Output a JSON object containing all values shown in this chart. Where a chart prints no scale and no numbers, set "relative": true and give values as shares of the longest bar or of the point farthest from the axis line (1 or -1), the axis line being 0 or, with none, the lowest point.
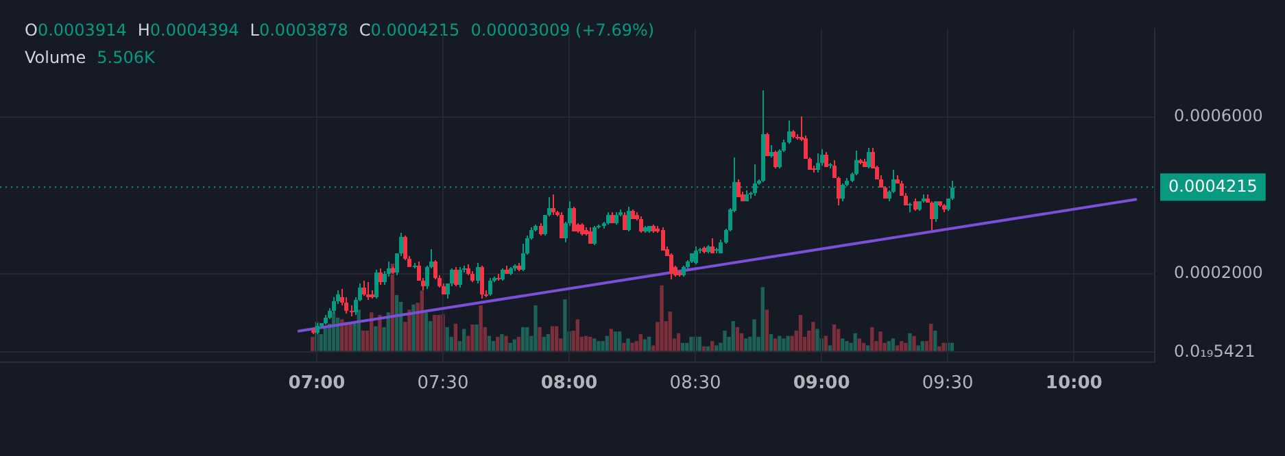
{
  "chart_data": [
    {
      "type": "candlestick",
      "annotations": [
        "O",
        "0.0003914",
        "H",
        "0.0004394",
        "L",
        "0.0003878",
        "C",
        "0.0004215",
        "0.00003009 (+7.69%)"
      ],
      "x": [
        6.9833,
        7,
        7.0167,
        7.0333,
        7.05,
        7.0667,
        7.0833,
        7.1,
        7.1167,
        7.1333,
        7.15,
        7.1667,
        7.1833,
        7.2,
        7.2167,
        7.2333,
        7.25,
        7.2667,
        7.2833,
        7.3,
        7.3167,
        7.3333,
        7.35,
        7.3667,
        7.3833,
        7.4,
        7.4167,
        7.4333,
        7.45,
        7.4667,
        7.4833,
        7.5,
        7.5167,
        7.5333,
        7.55,
        7.5667,
        7.5833,
        7.6,
        7.6167,
        7.6333,
        7.65,
        7.6667,
        7.6833,
        7.7,
        7.7167,
        7.7333,
        7.75,
        7.7667,
        7.7833,
        7.8,
        7.8167,
        7.8333,
        7.85,
        7.8667,
        7.8833,
        7.9,
        7.9167,
        7.9333,
        7.95,
        7.9667,
        7.9833,
        8,
        8.0167,
        8.0333,
        8.05,
        8.0667,
        8.0833,
        8.1,
        8.1167,
        8.1333,
        8.15,
        8.1667,
        8.1833,
        8.2,
        8.2167,
        8.2333,
        8.25,
        8.2667,
        8.2833,
        8.3,
        8.3167,
        8.3333,
        8.35,
        8.3667,
        8.3833,
        8.4,
        8.4167,
        8.4333,
        8.45,
        8.4667,
        8.4833,
        8.5,
        8.5167,
        8.5333,
        8.55,
        8.5667,
        8.5833,
        8.6,
        8.6167,
        8.6333,
        8.65,
        8.6667,
        8.6833,
        8.7,
        8.7167,
        8.7333,
        8.75,
        8.7667,
        8.7833,
        8.8,
        8.8167,
        8.8333,
        8.85,
        8.8667,
        8.8833,
        8.9,
        8.9167,
        8.9333,
        8.95,
        8.9667,
        8.9833,
        9,
        9.0167,
        9.0333,
        9.05,
        9.0667,
        9.0833,
        9.1,
        9.1167,
        9.1333,
        9.15,
        9.1667,
        9.1833,
        9.2,
        9.2167,
        9.2333,
        9.25,
        9.2667,
        9.2833,
        9.3,
        9.3167,
        9.3333,
        9.35,
        9.3667,
        9.3833,
        9.4,
        9.4167,
        9.4333,
        9.45,
        9.4667,
        9.4833,
        9.5,
        9.5167
      ],
      "ohlc": [
        [
          5.7e-05,
          6.4e-05,
          4.8e-05,
          5.1e-05
        ],
        [
          5.1e-05,
          7.3e-05,
          4.8e-05,
          6.7e-05
        ],
        [
          6.7e-05,
          7.6e-05,
          6e-05,
          7.3e-05
        ],
        [
          7.3e-05,
          9.5e-05,
          7e-05,
          8.9e-05
        ],
        [
          8.9e-05,
          0.000114,
          8.3e-05,
          0.000105
        ],
        [
          0.000105,
          0.00014,
          9.8e-05,
          0.00013
        ],
        [
          0.00013,
          0.000159,
          0.000124,
          0.000146
        ],
        [
          0.00014,
          0.000162,
          0.000121,
          0.000127
        ],
        [
          0.000127,
          0.00014,
          9.8e-05,
          0.000105
        ],
        [
          0.000105,
          0.000121,
          9.2e-05,
          0.000102
        ],
        [
          0.000102,
          0.00014,
          9.5e-05,
          0.000133
        ],
        [
          0.000133,
          0.000175,
          0.00013,
          0.000165
        ],
        [
          0.000165,
          0.000181,
          0.000143,
          0.000149
        ],
        [
          0.000149,
          0.000178,
          0.000133,
          0.00014
        ],
        [
          0.000149,
          0.000159,
          0.000137,
          0.00014
        ],
        [
          0.00014,
          0.00021,
          0.000137,
          0.000203
        ],
        [
          0.000203,
          0.000213,
          0.000171,
          0.000178
        ],
        [
          0.000178,
          0.000206,
          0.000171,
          0.0002
        ],
        [
          0.0002,
          0.000232,
          0.000194,
          0.000213
        ],
        [
          0.000213,
          0.000219,
          0.0002,
          0.000203
        ],
        [
          0.000203,
          0.000254,
          0.000197,
          0.000251
        ],
        [
          0.000251,
          0.000305,
          0.000244,
          0.000295
        ],
        [
          0.000295,
          0.000298,
          0.000235,
          0.000238
        ],
        [
          0.000238,
          0.000244,
          0.000216,
          0.000219
        ],
        [
          0.000219,
          0.000229,
          0.000213,
          0.000222
        ],
        [
          0.000222,
          0.000232,
          0.000181,
          0.000184
        ],
        [
          0.000184,
          0.000191,
          0.000159,
          0.000168
        ],
        [
          0.000168,
          0.000222,
          0.000162,
          0.000216
        ],
        [
          0.000216,
          0.000264,
          0.000213,
          0.000232
        ],
        [
          0.000232,
          0.000235,
          0.000187,
          0.000191
        ],
        [
          0.000191,
          0.000197,
          0.000165,
          0.000168
        ],
        [
          0.000168,
          0.000175,
          0.000146,
          0.000149
        ],
        [
          0.000149,
          0.000175,
          0.000137,
          0.000175
        ],
        [
          0.000175,
          0.000213,
          0.000168,
          0.00021
        ],
        [
          0.00021,
          0.000216,
          0.000168,
          0.000171
        ],
        [
          0.000171,
          0.000216,
          0.000165,
          0.00021
        ],
        [
          0.00021,
          0.000222,
          0.000203,
          0.000213
        ],
        [
          0.000213,
          0.000225,
          0.000197,
          0.0002
        ],
        [
          0.0002,
          0.000206,
          0.000178,
          0.000181
        ],
        [
          0.000181,
          0.000229,
          0.000175,
          0.000219
        ],
        [
          0.000219,
          0.000222,
          0.000137,
          0.000149
        ],
        [
          0.000149,
          0.000159,
          0.00014,
          0.000146
        ],
        [
          0.000149,
          0.000191,
          0.000143,
          0.000184
        ],
        [
          0.000184,
          0.000194,
          0.000178,
          0.000191
        ],
        [
          0.000191,
          0.0002,
          0.000181,
          0.000187
        ],
        [
          0.000187,
          0.000213,
          0.000184,
          0.00021
        ],
        [
          0.00021,
          0.000222,
          0.0002,
          0.0002
        ],
        [
          0.0002,
          0.000216,
          0.000197,
          0.000213
        ],
        [
          0.000213,
          0.000225,
          0.000206,
          0.000222
        ],
        [
          0.000222,
          0.000229,
          0.000206,
          0.00021
        ],
        [
          0.00021,
          0.000276,
          0.000206,
          0.000251
        ],
        [
          0.000251,
          0.000298,
          0.000248,
          0.000292
        ],
        [
          0.000292,
          0.000318,
          0.000286,
          0.000311
        ],
        [
          0.000311,
          0.000327,
          0.000308,
          0.000324
        ],
        [
          0.000324,
          0.00033,
          0.000298,
          0.000302
        ],
        [
          0.000302,
          0.000349,
          0.000298,
          0.000349
        ],
        [
          0.000349,
          0.000397,
          0.000346,
          0.000368
        ],
        [
          0.000368,
          0.000403,
          0.000352,
          0.000356
        ],
        [
          0.000356,
          0.000362,
          0.000346,
          0.000349
        ],
        [
          0.000349,
          0.000359,
          0.000292,
          0.000292
        ],
        [
          0.000292,
          0.000333,
          0.000279,
          0.00033
        ],
        [
          0.00033,
          0.000387,
          0.000324,
          0.000368
        ],
        [
          0.000368,
          0.000371,
          0.000308,
          0.000308
        ],
        [
          0.000327,
          0.00033,
          0.000305,
          0.000308
        ],
        [
          0.000327,
          0.00033,
          0.000298,
          0.000302
        ],
        [
          0.000311,
          0.000318,
          0.000298,
          0.000302
        ],
        [
          0.000308,
          0.000318,
          0.000276,
          0.000276
        ],
        [
          0.000276,
          0.000321,
          0.000273,
          0.000318
        ],
        [
          0.000318,
          0.000327,
          0.000314,
          0.000324
        ],
        [
          0.000324,
          0.000333,
          0.000314,
          0.00033
        ],
        [
          0.00033,
          0.000356,
          0.000327,
          0.000349
        ],
        [
          0.000349,
          0.000356,
          0.00033,
          0.00033
        ],
        [
          0.00033,
          0.000359,
          0.000327,
          0.000352
        ],
        [
          0.000352,
          0.000365,
          0.000346,
          0.000356
        ],
        [
          0.000349,
          0.000356,
          0.000311,
          0.000311
        ],
        [
          0.000311,
          0.000371,
          0.000308,
          0.000362
        ],
        [
          0.000362,
          0.000365,
          0.00034,
          0.00034
        ],
        [
          0.000352,
          0.000359,
          0.000337,
          0.00034
        ],
        [
          0.00034,
          0.000346,
          0.000305,
          0.000308
        ],
        [
          0.000308,
          0.000321,
          0.000305,
          0.000318
        ],
        [
          0.000308,
          0.000324,
          0.000305,
          0.000321
        ],
        [
          0.000321,
          0.000327,
          0.000305,
          0.000308
        ],
        [
          0.000314,
          0.000321,
          0.000305,
          0.000308
        ],
        [
          0.000311,
          0.000318,
          0.00026,
          0.00026
        ],
        [
          0.000264,
          0.00027,
          0.000244,
          0.000244
        ],
        [
          0.000248,
          0.000254,
          0.000187,
          0.0002
        ],
        [
          0.000216,
          0.000222,
          0.000194,
          0.000197
        ],
        [
          0.000203,
          0.000206,
          0.000194,
          0.000197
        ],
        [
          0.000197,
          0.000222,
          0.000194,
          0.000216
        ],
        [
          0.000216,
          0.000235,
          0.000213,
          0.000232
        ],
        [
          0.000232,
          0.000254,
          0.000229,
          0.000251
        ],
        [
          0.000229,
          0.00027,
          0.000225,
          0.00026
        ],
        [
          0.00026,
          0.000267,
          0.000254,
          0.000264
        ],
        [
          0.000267,
          0.00027,
          0.000254,
          0.000257
        ],
        [
          0.000257,
          0.000273,
          0.000254,
          0.00027
        ],
        [
          0.00027,
          0.000292,
          0.000254,
          0.000254
        ],
        [
          0.00026,
          0.000267,
          0.000254,
          0.000264
        ],
        [
          0.000254,
          0.000286,
          0.000251,
          0.000279
        ],
        [
          0.000279,
          0.000314,
          0.000276,
          0.000311
        ],
        [
          0.000311,
          0.000368,
          0.000308,
          0.000365
        ],
        [
          0.000362,
          0.000498,
          0.000359,
          0.000435
        ],
        [
          0.000435,
          0.000441,
          0.000397,
          0.000397
        ],
        [
          0.000403,
          0.00041,
          0.000384,
          0.000387
        ],
        [
          0.000387,
          0.000413,
          0.000384,
          0.000403
        ],
        [
          0.000403,
          0.00041,
          0.000391,
          0.000406
        ],
        [
          0.000406,
          0.000479,
          0.0004,
          0.000432
        ],
        [
          0.000432,
          0.000441,
          0.000429,
          0.000438
        ],
        [
          0.000438,
          0.000667,
          0.000435,
          0.000556
        ],
        [
          0.000556,
          0.000559,
          0.000502,
          0.000502
        ],
        [
          0.000502,
          0.00053,
          0.000498,
          0.000511
        ],
        [
          0.000511,
          0.000514,
          0.00047,
          0.000473
        ],
        [
          0.000473,
          0.000518,
          0.00047,
          0.000514
        ],
        [
          0.000514,
          0.000543,
          0.000511,
          0.000537
        ],
        [
          0.000537,
          0.000591,
          0.000533,
          0.000565
        ],
        [
          0.000565,
          0.000568,
          0.000546,
          0.000549
        ],
        [
          0.000549,
          0.000556,
          0.000543,
          0.000546
        ],
        [
          0.000549,
          0.000603,
          0.00054,
          0.000543
        ],
        [
          0.000546,
          0.000552,
          0.000492,
          0.000492
        ],
        [
          0.000492,
          0.000498,
          0.000467,
          0.000467
        ],
        [
          0.00047,
          0.000476,
          0.00046,
          0.000464
        ],
        [
          0.000464,
          0.000508,
          0.00046,
          0.000483
        ],
        [
          0.000483,
          0.000518,
          0.000476,
          0.000505
        ],
        [
          0.000505,
          0.000511,
          0.000473,
          0.000473
        ],
        [
          0.000476,
          0.000483,
          0.00047,
          0.000479
        ],
        [
          0.000476,
          0.000489,
          0.000444,
          0.000444
        ],
        [
          0.000444,
          0.000448,
          0.000375,
          0.000391
        ],
        [
          0.000391,
          0.000432,
          0.000387,
          0.000429
        ],
        [
          0.000429,
          0.000444,
          0.000425,
          0.000438
        ],
        [
          0.000438,
          0.00046,
          0.000435,
          0.000454
        ],
        [
          0.000454,
          0.000514,
          0.000451,
          0.000489
        ],
        [
          0.000489,
          0.000495,
          0.000479,
          0.000483
        ],
        [
          0.000486,
          0.000492,
          0.000473,
          0.000473
        ],
        [
          0.000473,
          0.000521,
          0.00047,
          0.000511
        ],
        [
          0.000511,
          0.000521,
          0.00047,
          0.00047
        ],
        [
          0.000473,
          0.000476,
          0.000441,
          0.000441
        ],
        [
          0.000441,
          0.000451,
          0.000419,
          0.000419
        ],
        [
          0.000419,
          0.000425,
          0.000391,
          0.000391
        ],
        [
          0.000391,
          0.000413,
          0.000387,
          0.00041
        ],
        [
          0.00041,
          0.000464,
          0.000406,
          0.000441
        ],
        [
          0.000441,
          0.000451,
          0.000432,
          0.000432
        ],
        [
          0.000432,
          0.000438,
          0.0004,
          0.0004
        ],
        [
          0.0004,
          0.000406,
          0.000375,
          0.000375
        ],
        [
          0.000375,
          0.000381,
          0.000356,
          0.000378
        ],
        [
          0.000384,
          0.000394,
          0.000362,
          0.000365
        ],
        [
          0.000365,
          0.000387,
          0.000362,
          0.000384
        ],
        [
          0.000384,
          0.000403,
          0.000381,
          0.000394
        ],
        [
          0.000394,
          0.000403,
          0.000381,
          0.000381
        ],
        [
          0.000381,
          0.000387,
          0.000311,
          0.00034
        ],
        [
          0.00034,
          0.000384,
          0.000333,
          0.000384
        ],
        [
          0.000384,
          0.000387,
          0.000371,
          0.000375
        ],
        [
          0.000375,
          0.000378,
          0.000359,
          0.000365
        ],
        [
          0.000365,
          0.000394,
          0.000362,
          0.000394
        ],
        [
          0.0003914,
          0.0004394,
          0.0003878,
          0.0004215
        ]
      ],
      "series": [
        {
          "type": "line",
          "x": [
            6.929,
            10.245
          ],
          "values": [
            5.4e-05,
            0.00039
          ],
          "color": "#7b4fd6"
        }
      ],
      "xlim": [
        5.745,
        10.32
      ],
      "xticks": [
        {
          "value": 7,
          "label": "07:00"
        },
        {
          "value": 7.5,
          "label": "07:30"
        },
        {
          "value": 8,
          "label": "08:00"
        },
        {
          "value": 8.5,
          "label": "08:30"
        },
        {
          "value": 9,
          "label": "09:00"
        },
        {
          "value": 9.5,
          "label": "09:30"
        },
        {
          "value": 10,
          "label": "10:00"
        }
      ],
      "ylim": [
        -2.5e-05,
        0.000825
      ],
      "yticks": [
        {
          "value": 0,
          "label": "0.0₁₉5421"
        },
        {
          "value": 0.0002,
          "label": "0.0002000"
        },
        {
          "value": 0.0006,
          "label": "0.0006000"
        }
      ],
      "ref_lines": [
        {
          "axis": "y",
          "value": 0.0004215,
          "label": "0.0004215",
          "color": "#089981",
          "line_style": "dotted"
        }
      ],
      "grid": true,
      "legend": false
    },
    {
      "type": "bar",
      "relative": true,
      "tick_labels": false,
      "annotations": [
        "Volume",
        "5.506K"
      ],
      "x": [
        6.9833,
        7,
        7.0167,
        7.0333,
        7.05,
        7.0667,
        7.0833,
        7.1,
        7.1167,
        7.1333,
        7.15,
        7.1667,
        7.1833,
        7.2,
        7.2167,
        7.2333,
        7.25,
        7.2667,
        7.2833,
        7.3,
        7.3167,
        7.3333,
        7.35,
        7.3667,
        7.3833,
        7.4,
        7.4167,
        7.4333,
        7.45,
        7.4667,
        7.4833,
        7.5,
        7.5167,
        7.5333,
        7.55,
        7.5667,
        7.5833,
        7.6,
        7.6167,
        7.6333,
        7.65,
        7.6667,
        7.6833,
        7.7,
        7.7167,
        7.7333,
        7.75,
        7.7667,
        7.7833,
        7.8,
        7.8167,
        7.8333,
        7.85,
        7.8667,
        7.8833,
        7.9,
        7.9167,
        7.9333,
        7.95,
        7.9667,
        7.9833,
        8,
        8.0167,
        8.0333,
        8.05,
        8.0667,
        8.0833,
        8.1,
        8.1167,
        8.1333,
        8.15,
        8.1667,
        8.1833,
        8.2,
        8.2167,
        8.2333,
        8.25,
        8.2667,
        8.2833,
        8.3,
        8.3167,
        8.3333,
        8.35,
        8.3667,
        8.3833,
        8.4,
        8.4167,
        8.4333,
        8.45,
        8.4667,
        8.4833,
        8.5,
        8.5167,
        8.5333,
        8.55,
        8.5667,
        8.5833,
        8.6,
        8.6167,
        8.6333,
        8.65,
        8.6667,
        8.6833,
        8.7,
        8.7167,
        8.7333,
        8.75,
        8.7667,
        8.7833,
        8.8,
        8.8167,
        8.8333,
        8.85,
        8.8667,
        8.8833,
        8.9,
        8.9167,
        8.9333,
        8.95,
        8.9667,
        8.9833,
        9,
        9.0167,
        9.0333,
        9.05,
        9.0667,
        9.0833,
        9.1,
        9.1167,
        9.1333,
        9.15,
        9.1667,
        9.1833,
        9.2,
        9.2167,
        9.2333,
        9.25,
        9.2667,
        9.2833,
        9.3,
        9.3167,
        9.3333,
        9.35,
        9.3667,
        9.3833,
        9.4,
        9.4167,
        9.4333,
        9.45,
        9.4667,
        9.4833,
        9.5,
        9.5167
      ],
      "xlim": [
        5.745,
        10.32
      ],
      "values": [
        0.16,
        0.33,
        0.19,
        0.27,
        0.31,
        0.44,
        0.38,
        0.36,
        0.33,
        0.33,
        0.34,
        0.47,
        0.23,
        0.23,
        0.44,
        0.28,
        0.41,
        0.27,
        0.44,
        1,
        0.64,
        0.56,
        0.33,
        0.47,
        0.53,
        0.55,
        0.69,
        0.44,
        0.34,
        0.41,
        0.41,
        0.42,
        0.27,
        0.16,
        0.31,
        0.11,
        0.25,
        0.17,
        0.3,
        0.3,
        0.52,
        0.27,
        0.17,
        0.11,
        0.16,
        0.19,
        0.17,
        0.09,
        0.13,
        0.16,
        0.27,
        0.27,
        0.17,
        0.52,
        0.27,
        0.16,
        0.19,
        0.28,
        0.28,
        0.14,
        0.59,
        0.22,
        0.23,
        0.36,
        0.16,
        0.17,
        0.16,
        0.14,
        0.11,
        0.11,
        0.17,
        0.25,
        0.22,
        0.22,
        0.09,
        0.14,
        0.09,
        0.11,
        0.19,
        0.13,
        0.16,
        0.06,
        0.33,
        0.75,
        0.34,
        0.45,
        0.14,
        0.2,
        0.09,
        0.09,
        0.16,
        0.16,
        0.16,
        0.05,
        0.05,
        0.11,
        0.06,
        0.09,
        0.23,
        0.16,
        0.34,
        0.27,
        0.2,
        0.14,
        0.16,
        0.36,
        0.16,
        0.73,
        0.47,
        0.19,
        0.14,
        0.17,
        0.14,
        0.17,
        0.17,
        0.23,
        0.41,
        0.16,
        0.23,
        0.33,
        0.25,
        0.14,
        0.17,
        0.06,
        0.3,
        0.25,
        0.14,
        0.11,
        0.09,
        0.2,
        0.14,
        0.09,
        0.06,
        0.27,
        0.11,
        0.22,
        0.09,
        0.11,
        0.14,
        0.06,
        0.11,
        0.09,
        0.2,
        0.17,
        0.06,
        0.11,
        0.11,
        0.31,
        0.23,
        0.05,
        0.09,
        0.09,
        0.09
      ],
      "colors": [
        "#7b2f3b",
        "#1d6157",
        "#1d6157",
        "#1d6157",
        "#1d6157",
        "#1d6157",
        "#1d6157",
        "#7b2f3b",
        "#7b2f3b",
        "#7b2f3b",
        "#1d6157",
        "#1d6157",
        "#7b2f3b",
        "#7b2f3b",
        "#7b2f3b",
        "#1d6157",
        "#7b2f3b",
        "#1d6157",
        "#1d6157",
        "#7b2f3b",
        "#1d6157",
        "#1d6157",
        "#7b2f3b",
        "#7b2f3b",
        "#1d6157",
        "#7b2f3b",
        "#7b2f3b",
        "#1d6157",
        "#1d6157",
        "#7b2f3b",
        "#7b2f3b",
        "#7b2f3b",
        "#1d6157",
        "#1d6157",
        "#7b2f3b",
        "#1d6157",
        "#1d6157",
        "#7b2f3b",
        "#7b2f3b",
        "#1d6157",
        "#7b2f3b",
        "#7b2f3b",
        "#1d6157",
        "#1d6157",
        "#7b2f3b",
        "#1d6157",
        "#7b2f3b",
        "#1d6157",
        "#1d6157",
        "#7b2f3b",
        "#1d6157",
        "#1d6157",
        "#1d6157",
        "#1d6157",
        "#7b2f3b",
        "#1d6157",
        "#1d6157",
        "#7b2f3b",
        "#7b2f3b",
        "#7b2f3b",
        "#1d6157",
        "#1d6157",
        "#7b2f3b",
        "#7b2f3b",
        "#7b2f3b",
        "#7b2f3b",
        "#7b2f3b",
        "#1d6157",
        "#1d6157",
        "#1d6157",
        "#1d6157",
        "#7b2f3b",
        "#1d6157",
        "#1d6157",
        "#7b2f3b",
        "#1d6157",
        "#7b2f3b",
        "#7b2f3b",
        "#7b2f3b",
        "#1d6157",
        "#1d6157",
        "#7b2f3b",
        "#7b2f3b",
        "#7b2f3b",
        "#7b2f3b",
        "#7b2f3b",
        "#7b2f3b",
        "#7b2f3b",
        "#1d6157",
        "#1d6157",
        "#1d6157",
        "#1d6157",
        "#1d6157",
        "#7b2f3b",
        "#1d6157",
        "#7b2f3b",
        "#1d6157",
        "#1d6157",
        "#1d6157",
        "#1d6157",
        "#1d6157",
        "#7b2f3b",
        "#7b2f3b",
        "#1d6157",
        "#1d6157",
        "#1d6157",
        "#1d6157",
        "#1d6157",
        "#7b2f3b",
        "#1d6157",
        "#7b2f3b",
        "#1d6157",
        "#1d6157",
        "#1d6157",
        "#7b2f3b",
        "#7b2f3b",
        "#7b2f3b",
        "#7b2f3b",
        "#7b2f3b",
        "#7b2f3b",
        "#1d6157",
        "#1d6157",
        "#7b2f3b",
        "#1d6157",
        "#7b2f3b",
        "#7b2f3b",
        "#1d6157",
        "#1d6157",
        "#1d6157",
        "#1d6157",
        "#7b2f3b",
        "#7b2f3b",
        "#1d6157",
        "#7b2f3b",
        "#7b2f3b",
        "#7b2f3b",
        "#7b2f3b",
        "#1d6157",
        "#1d6157",
        "#7b2f3b",
        "#7b2f3b",
        "#7b2f3b",
        "#1d6157",
        "#7b2f3b",
        "#1d6157",
        "#1d6157",
        "#7b2f3b",
        "#7b2f3b",
        "#1d6157",
        "#7b2f3b",
        "#7b2f3b",
        "#1d6157",
        "#1d6157"
      ]
    }
  ]
}
